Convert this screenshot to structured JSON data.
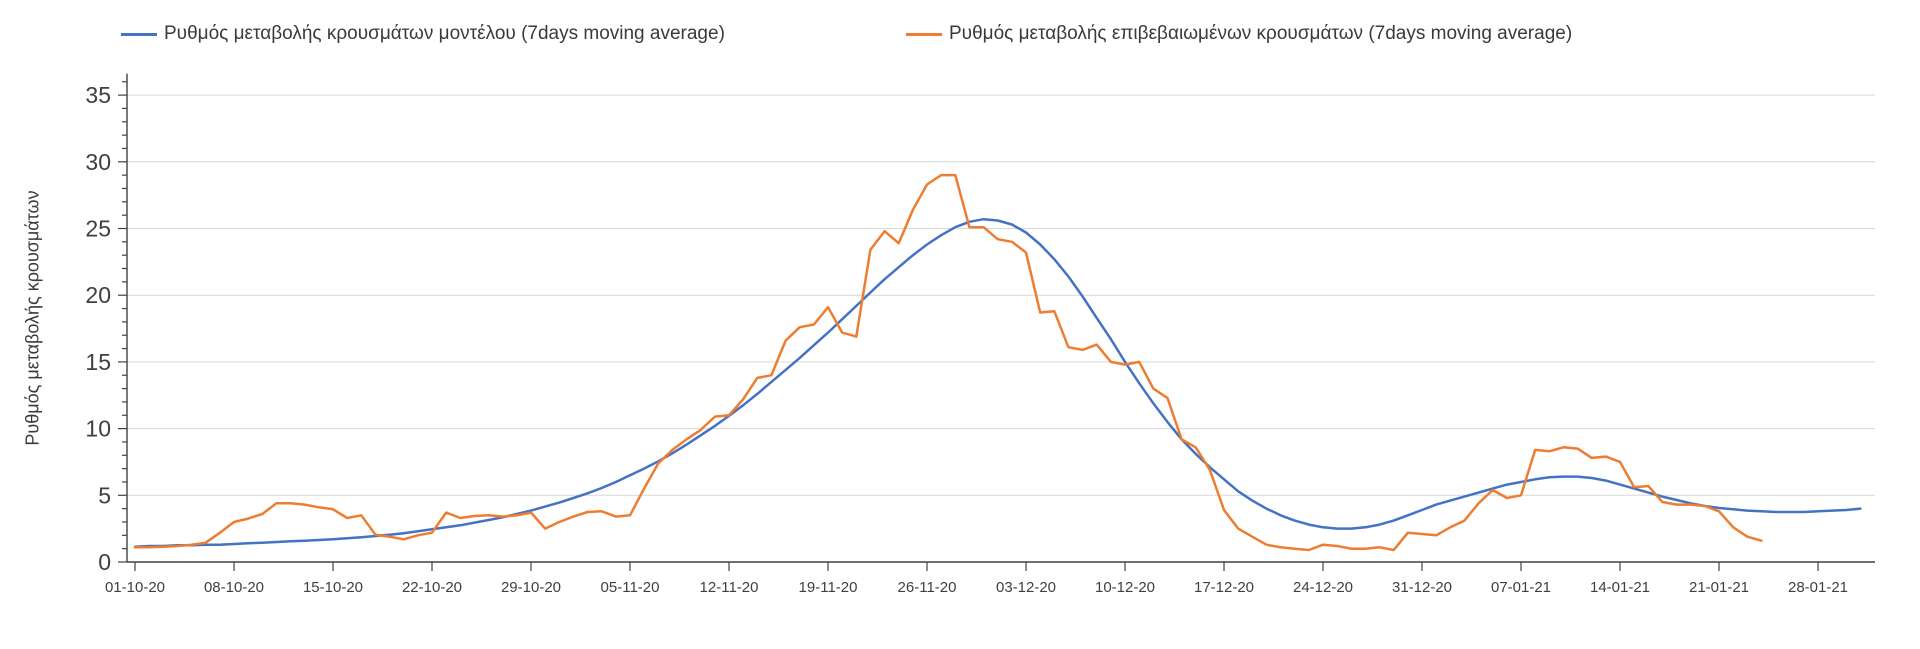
{
  "page": {
    "background": "#ffffff"
  },
  "chart_data": {
    "type": "line",
    "title": "",
    "ylabel": "Ρυθμός μεταβολής κρουσμάτων",
    "xlabel": "",
    "ylim": [
      0,
      35
    ],
    "y_ticks": [
      0,
      5,
      10,
      15,
      20,
      25,
      30,
      35
    ],
    "x_tick_labels": [
      "01-10-20",
      "08-10-20",
      "15-10-20",
      "22-10-20",
      "29-10-20",
      "05-11-20",
      "12-11-20",
      "19-11-20",
      "26-11-20",
      "03-12-20",
      "10-12-20",
      "17-12-20",
      "24-12-20",
      "31-12-20",
      "07-01-21",
      "14-01-21",
      "21-01-21",
      "28-01-21"
    ],
    "x_tick_day_index": [
      0,
      7,
      14,
      21,
      28,
      35,
      42,
      49,
      56,
      63,
      70,
      77,
      84,
      91,
      98,
      105,
      112,
      119
    ],
    "days_total": 123,
    "grid": "horizontal-major",
    "legend_position": "top",
    "grid_color": "#d9d9d9",
    "axis_color": "#404040",
    "text_color": "#3f3f3f",
    "series": [
      {
        "name": "Ρυθμός μεταβολής κρουσμάτων μοντέλου (7days moving average)",
        "color": "#4472c4",
        "start_day": 0,
        "values": [
          1.15,
          1.2,
          1.2,
          1.25,
          1.25,
          1.3,
          1.3,
          1.35,
          1.4,
          1.45,
          1.5,
          1.55,
          1.6,
          1.65,
          1.7,
          1.78,
          1.85,
          1.95,
          2.05,
          2.15,
          2.3,
          2.45,
          2.6,
          2.75,
          2.95,
          3.15,
          3.35,
          3.6,
          3.85,
          4.15,
          4.45,
          4.8,
          5.15,
          5.55,
          6.0,
          6.5,
          7.0,
          7.55,
          8.15,
          8.8,
          9.5,
          10.2,
          10.95,
          11.75,
          12.6,
          13.5,
          14.4,
          15.3,
          16.25,
          17.2,
          18.2,
          19.2,
          20.2,
          21.2,
          22.1,
          23.0,
          23.8,
          24.5,
          25.1,
          25.5,
          25.7,
          25.6,
          25.3,
          24.7,
          23.8,
          22.7,
          21.4,
          19.9,
          18.3,
          16.7,
          15.0,
          13.4,
          11.9,
          10.5,
          9.2,
          8.1,
          7.1,
          6.2,
          5.3,
          4.6,
          4.0,
          3.5,
          3.1,
          2.8,
          2.6,
          2.5,
          2.5,
          2.6,
          2.8,
          3.1,
          3.5,
          3.9,
          4.3,
          4.6,
          4.9,
          5.2,
          5.5,
          5.8,
          6.0,
          6.2,
          6.35,
          6.4,
          6.4,
          6.3,
          6.1,
          5.8,
          5.5,
          5.2,
          4.9,
          4.65,
          4.4,
          4.2,
          4.05,
          3.95,
          3.85,
          3.8,
          3.75,
          3.75,
          3.75,
          3.8,
          3.85,
          3.9,
          4.0
        ]
      },
      {
        "name": "Ρυθμός μεταβολής επιβεβαιωμένων κρουσμάτων (7days moving average)",
        "color": "#ed7d31",
        "start_day": 0,
        "values": [
          1.1,
          1.1,
          1.15,
          1.2,
          1.3,
          1.45,
          2.2,
          3.0,
          3.25,
          3.6,
          4.4,
          4.4,
          4.3,
          4.1,
          3.95,
          3.3,
          3.5,
          2.05,
          1.9,
          1.7,
          2.0,
          2.2,
          3.7,
          3.3,
          3.45,
          3.5,
          3.4,
          3.5,
          3.7,
          2.5,
          3.0,
          3.4,
          3.75,
          3.8,
          3.4,
          3.5,
          5.5,
          7.4,
          8.4,
          9.2,
          9.9,
          10.9,
          11.0,
          12.2,
          13.8,
          14.0,
          16.6,
          17.6,
          17.8,
          19.1,
          17.2,
          16.9,
          23.4,
          24.8,
          23.9,
          26.4,
          28.3,
          29.0,
          29.0,
          25.1,
          25.1,
          24.2,
          24.0,
          23.2,
          18.7,
          18.8,
          16.1,
          15.9,
          16.3,
          15.0,
          14.8,
          15.0,
          13.0,
          12.3,
          9.2,
          8.6,
          6.9,
          3.9,
          2.5,
          1.9,
          1.3,
          1.1,
          1.0,
          0.9,
          1.3,
          1.2,
          1.0,
          1.0,
          1.1,
          0.9,
          2.2,
          2.1,
          2.0,
          2.6,
          3.1,
          4.4,
          5.4,
          4.8,
          5.0,
          8.4,
          8.3,
          8.6,
          8.5,
          7.8,
          7.9,
          7.5,
          5.6,
          5.7,
          4.5,
          4.3,
          4.3,
          4.2,
          3.8,
          2.6,
          1.9,
          1.6
        ]
      }
    ]
  }
}
